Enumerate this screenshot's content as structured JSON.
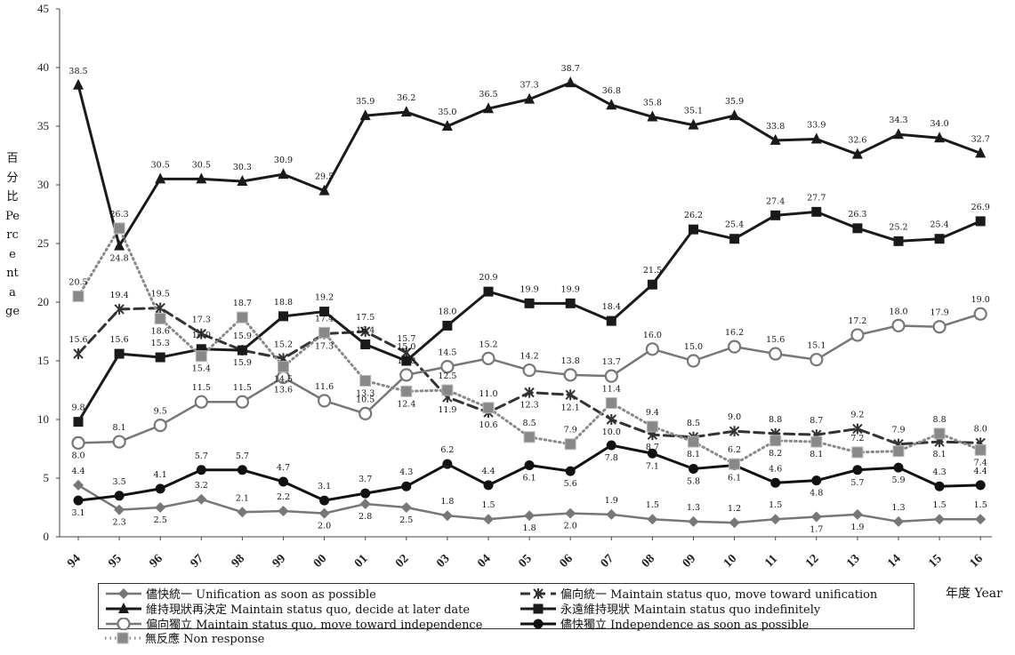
{
  "chart_data": {
    "type": "line",
    "ylabel": "百分比 Percentage",
    "xlabel": "年度 Year",
    "ylim": [
      0,
      45
    ],
    "yticks": [
      0,
      5,
      10,
      15,
      20,
      25,
      30,
      35,
      40,
      45
    ],
    "categories": [
      "94",
      "95",
      "96",
      "97",
      "98",
      "99",
      "00",
      "01",
      "02",
      "03",
      "04",
      "05",
      "06",
      "07",
      "08",
      "09",
      "10",
      "11",
      "12",
      "13",
      "14",
      "15",
      "16"
    ],
    "grid": false,
    "legend_position": "bottom",
    "series": [
      {
        "key": "unify_asap",
        "name": "儘快統一 Unification as soon as possible",
        "values": [
          4.4,
          2.3,
          2.5,
          3.2,
          2.1,
          2.2,
          2.0,
          2.8,
          2.5,
          1.8,
          1.5,
          1.8,
          2.0,
          1.9,
          1.5,
          1.3,
          1.2,
          1.5,
          1.7,
          1.9,
          1.3,
          1.5,
          1.5
        ],
        "labels": [
          "4.4",
          "2.3",
          "2.5",
          "3.2",
          "2.1",
          "2.2",
          "2.0",
          "2.8",
          "2.5",
          "1.8",
          "1.5",
          "1.8",
          "2.0",
          "1.9",
          "1.5",
          "1.3",
          "1.2",
          "1.5",
          "1.7",
          "1.9",
          "1.3",
          "1.5",
          "1.5"
        ],
        "color": "#777777",
        "marker": "diamond",
        "dash": "solid"
      },
      {
        "key": "sq_unify",
        "name": "偏向統一 Maintain status quo, move toward unification",
        "values": [
          15.6,
          19.4,
          19.5,
          17.3,
          15.9,
          15.2,
          17.3,
          17.5,
          15.7,
          11.9,
          10.6,
          12.3,
          12.1,
          10.0,
          8.7,
          8.5,
          9.0,
          8.8,
          8.7,
          9.2,
          7.9,
          8.1,
          8.0
        ],
        "labels": [
          "15.6",
          "19.4",
          "19.5",
          "17.3",
          "15.9",
          "15.2",
          "17.3",
          "17.5",
          "15.7",
          "11.9",
          "10.6",
          "12.3",
          "12.1",
          "10.0",
          "8.7",
          "8.5",
          "9.0",
          "8.8",
          "8.7",
          "9.2",
          "7.9",
          "8.1",
          "8.0"
        ],
        "color": "#333333",
        "marker": "asterisk",
        "dash": "dashed"
      },
      {
        "key": "sq_decide",
        "name": "維持現狀再決定 Maintain status quo, decide at later date",
        "values": [
          38.5,
          24.8,
          30.5,
          30.5,
          30.3,
          30.9,
          29.5,
          35.9,
          36.2,
          35.0,
          36.5,
          37.3,
          38.7,
          36.8,
          35.8,
          35.1,
          35.9,
          33.8,
          33.9,
          32.6,
          34.3,
          34.0,
          32.7
        ],
        "labels": [
          "38.5",
          "24.8",
          "30.5",
          "30.5",
          "30.3",
          "30.9",
          "29.5",
          "35.9",
          "36.2",
          "35.0",
          "36.5",
          "37.3",
          "38.7",
          "36.8",
          "35.8",
          "35.1",
          "35.9",
          "33.8",
          "33.9",
          "32.6",
          "34.3",
          "34.0",
          "32.7"
        ],
        "color": "#1a1a1a",
        "marker": "triangle",
        "dash": "solid"
      },
      {
        "key": "sq_indef",
        "name": "永遠維持現狀 Maintain status quo indefinitely",
        "values": [
          9.8,
          15.6,
          15.3,
          16.0,
          15.9,
          18.8,
          19.2,
          16.4,
          15.0,
          18.0,
          20.9,
          19.9,
          19.9,
          18.4,
          21.5,
          26.2,
          25.4,
          27.4,
          27.7,
          26.3,
          25.2,
          25.4,
          26.9
        ],
        "labels": [
          "9.8",
          "15.6",
          "15.3",
          "16.0",
          "15.9",
          "18.8",
          "19.2",
          "16.4",
          "15.0",
          "18.0",
          "20.9",
          "19.9",
          "19.9",
          "18.4",
          "21.5",
          "26.2",
          "25.4",
          "27.4",
          "27.7",
          "26.3",
          "25.2",
          "25.4",
          "26.9"
        ],
        "color": "#1a1a1a",
        "marker": "square",
        "dash": "solid"
      },
      {
        "key": "sq_indep",
        "name": "偏向獨立 Maintain status quo, move toward independence",
        "values": [
          8.0,
          8.1,
          9.5,
          11.5,
          11.5,
          13.6,
          11.6,
          10.5,
          13.8,
          14.5,
          15.2,
          14.2,
          13.8,
          13.7,
          16.0,
          15.0,
          16.2,
          15.6,
          15.1,
          17.2,
          18.0,
          17.9,
          19.0
        ],
        "labels": [
          "8.0",
          "8.1",
          "9.5",
          "11.5",
          "11.5",
          "13.6",
          "11.6",
          "10.5",
          "13.8",
          "14.5",
          "15.2",
          "14.2",
          "13.8",
          "13.7",
          "16.0",
          "15.0",
          "16.2",
          "15.6",
          "15.1",
          "17.2",
          "18.0",
          "17.9",
          "19.0"
        ],
        "color": "#777777",
        "marker": "circle-open",
        "dash": "solid"
      },
      {
        "key": "indep_asap",
        "name": "儘快獨立 Independence as soon as possible",
        "values": [
          3.1,
          3.5,
          4.1,
          5.7,
          5.7,
          4.7,
          3.1,
          3.7,
          4.3,
          6.2,
          4.4,
          6.1,
          5.6,
          7.8,
          7.1,
          5.8,
          6.1,
          4.6,
          4.8,
          5.7,
          5.9,
          4.3,
          4.4
        ],
        "labels": [
          "3.1",
          "3.5",
          "4.1",
          "5.7",
          "5.7",
          "4.7",
          "3.1",
          "3.7",
          "4.3",
          "6.2",
          "4.4",
          "6.1",
          "5.6",
          "7.8",
          "7.1",
          "5.8",
          "6.1",
          "4.6",
          "4.8",
          "5.7",
          "5.9",
          "4.3",
          "4.4"
        ],
        "color": "#111111",
        "marker": "circle-filled",
        "dash": "solid"
      },
      {
        "key": "non_resp",
        "name": "無反應 Non response",
        "values": [
          20.5,
          26.3,
          18.6,
          15.4,
          18.7,
          14.5,
          17.4,
          13.3,
          12.4,
          12.5,
          11.0,
          8.5,
          7.9,
          11.4,
          9.4,
          8.1,
          6.2,
          8.2,
          8.1,
          7.2,
          7.3,
          8.8,
          7.4
        ],
        "labels": [
          "20.5",
          "26.3",
          "18.6",
          "15.4",
          "18.7",
          "14.5",
          "17.4",
          "13.3",
          "12.4",
          "12.5",
          "11.0",
          "8.5",
          "7.9",
          "11.4",
          "9.4",
          "8.1",
          "6.2",
          "8.2",
          "8.1",
          "7.2",
          "",
          "8.8",
          "7.4"
        ],
        "color": "#888888",
        "marker": "square-gray",
        "dash": "dotted"
      }
    ]
  }
}
